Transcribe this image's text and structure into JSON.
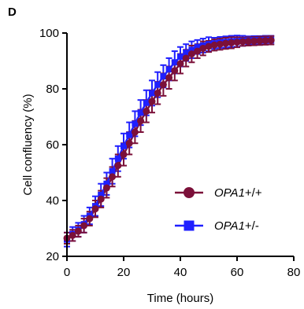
{
  "chart_data": {
    "type": "line",
    "panel_label": "D",
    "xlabel": "Time (hours)",
    "ylabel": "Cell confluency (%)",
    "xlim": [
      0,
      80
    ],
    "ylim": [
      20,
      100
    ],
    "x_ticks": [
      "0",
      "20",
      "40",
      "60",
      "80"
    ],
    "y_ticks": [
      "20",
      "40",
      "60",
      "80",
      "100"
    ],
    "grid": false,
    "legend_position": "lower-right",
    "x": [
      0,
      2,
      4,
      6,
      8,
      10,
      12,
      14,
      16,
      18,
      20,
      22,
      24,
      26,
      28,
      30,
      32,
      34,
      36,
      38,
      40,
      42,
      44,
      46,
      48,
      50,
      52,
      54,
      56,
      58,
      60,
      62,
      64,
      66,
      68,
      70,
      72
    ],
    "series": [
      {
        "name_main": "OPA1",
        "name_suffix": "+/-",
        "color": "#1f1fff",
        "marker": "square",
        "values": [
          26,
          28,
          29.5,
          31.5,
          34.5,
          38,
          42,
          46,
          50.5,
          55,
          59.5,
          63.5,
          67.5,
          71.5,
          75,
          78.5,
          81.5,
          84.5,
          87,
          89.5,
          91.5,
          93,
          94,
          95,
          95.5,
          96,
          96.3,
          96.6,
          96.8,
          97,
          97.1,
          97.2,
          97.3,
          97.4,
          97.4,
          97.5,
          97.5
        ],
        "errors": [
          2.5,
          2.5,
          2.5,
          3,
          3,
          3.5,
          4,
          4,
          4.5,
          4.5,
          4.5,
          4.5,
          4.5,
          4.5,
          4.5,
          4.5,
          4.5,
          4,
          4,
          4,
          3.5,
          3,
          3,
          2.5,
          2.5,
          2.5,
          2,
          2,
          2,
          2,
          2,
          1.8,
          1.5,
          1.5,
          1.5,
          1.5,
          1.5
        ]
      },
      {
        "name_main": "OPA1",
        "name_suffix": "+/+",
        "color": "#7b1039",
        "marker": "circle",
        "values": [
          26.5,
          27.5,
          29,
          31,
          33.5,
          37,
          40.5,
          44.5,
          48.5,
          52.5,
          56.5,
          60.5,
          64.5,
          68.5,
          72,
          75.5,
          78.5,
          81.5,
          84,
          86.5,
          89,
          91,
          92.5,
          93.5,
          94.5,
          95.2,
          95.7,
          96,
          96.3,
          96.5,
          96.7,
          96.9,
          97,
          97.1,
          97.2,
          97.3,
          97.4
        ],
        "errors": [
          2,
          2,
          2,
          2.5,
          2.5,
          3,
          3,
          3.5,
          3.5,
          4,
          4,
          4,
          4,
          4,
          4,
          4,
          4,
          4,
          4,
          3.5,
          3.5,
          3,
          3,
          2.5,
          2.5,
          2,
          2,
          2,
          2,
          2,
          1.8,
          1.5,
          1.5,
          1.5,
          1.5,
          1.5,
          1.5
        ]
      }
    ]
  }
}
